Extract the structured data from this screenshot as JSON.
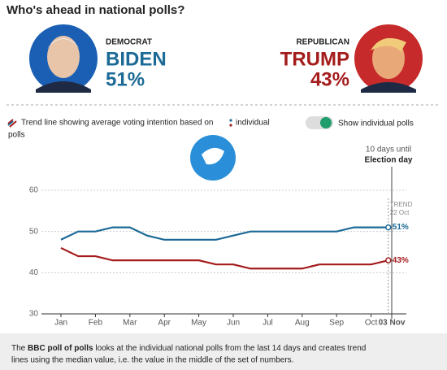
{
  "header": {
    "title": "Who's ahead in national polls?"
  },
  "candidates": [
    {
      "party": "DEMOCRAT",
      "name": "BIDEN",
      "share": {
        "value": 51,
        "label": "51%"
      },
      "color": "#1c6a96"
    },
    {
      "party": "REPUBLICAN",
      "name": "TRUMP",
      "share": {
        "value": 43,
        "label": "43%"
      },
      "color": "#a41c1c"
    }
  ],
  "legend": {
    "lines": [
      "Trend line showing average voting intention based on",
      "individual",
      "polls"
    ],
    "toggle": "Show individual polls"
  },
  "chart_data": {
    "type": "line",
    "categories": [
      "Jan",
      null,
      "Feb",
      null,
      "Mar",
      null,
      "Apr",
      null,
      "May",
      null,
      "Jun",
      null,
      "Jul",
      null,
      "Aug",
      null,
      "Sep",
      null,
      "Oct",
      null,
      "03 Nov"
    ],
    "series": [
      {
        "name": "BIDEN",
        "color": "#1c6a96",
        "values": [
          48,
          50,
          50,
          51,
          51,
          49,
          48,
          48,
          48,
          48,
          49,
          50,
          50,
          50,
          50,
          50,
          50,
          51,
          51,
          51,
          null
        ],
        "value_labels": [
          null,
          null,
          null,
          null,
          null,
          null,
          null,
          null,
          null,
          null,
          null,
          null,
          null,
          null,
          null,
          null,
          null,
          null,
          null,
          "51%",
          null
        ]
      },
      {
        "name": "TRUMP",
        "color": "#a41c1c",
        "values": [
          46,
          44,
          44,
          43,
          43,
          43,
          43,
          43,
          43,
          42,
          42,
          41,
          41,
          41,
          41,
          42,
          42,
          42,
          42,
          43,
          null
        ],
        "value_labels": [
          null,
          null,
          null,
          null,
          null,
          null,
          null,
          null,
          null,
          null,
          null,
          null,
          null,
          null,
          null,
          null,
          null,
          null,
          null,
          "43%",
          null
        ]
      }
    ],
    "ylim": [
      30,
      60
    ],
    "yticks": [
      30,
      40,
      50,
      60
    ],
    "grid": true,
    "annotations": {
      "countdown": "10 days until",
      "election": "Election day",
      "trend": "TREND",
      "trend_date": "22 Oct"
    }
  },
  "footer": {
    "lead": "The ",
    "bold": "BBC poll of polls",
    "rest": " looks at the individual national polls from the last 14 days and creates trend",
    "line2": "lines using the median value, i.e. the value in the middle of the set of numbers."
  }
}
